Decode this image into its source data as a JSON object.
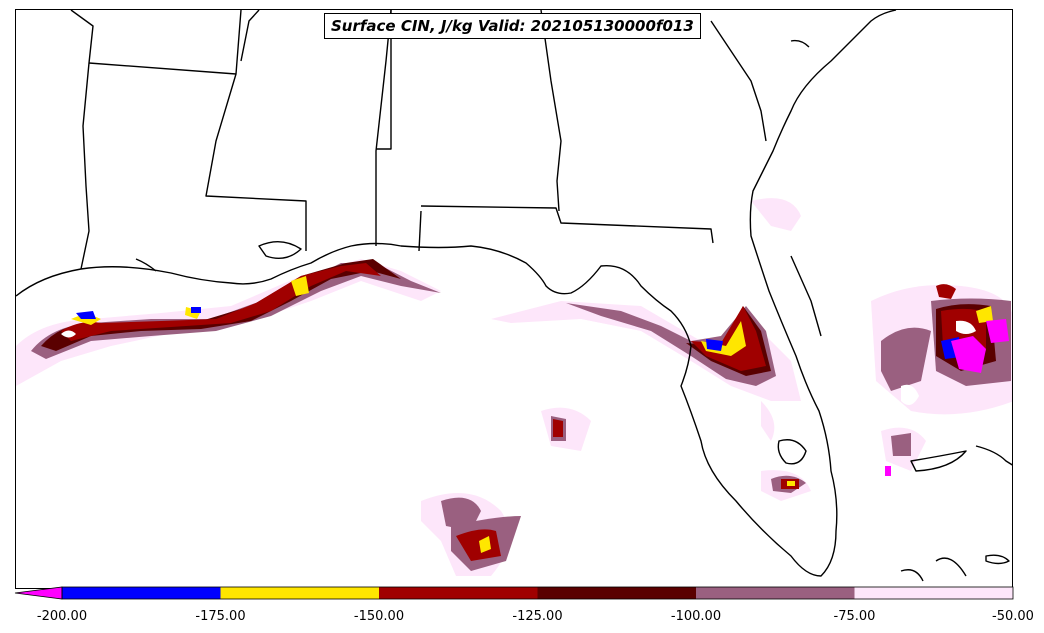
{
  "title": "Surface CIN, J/kg Valid: 202105130000f013",
  "colorbar": {
    "colors": [
      "#ff00ff",
      "#0000ff",
      "#ffe600",
      "#a00000",
      "#5a0000",
      "#9a6080",
      "#fde6fa"
    ],
    "bins": [
      {
        "from": -200,
        "to": -175,
        "color": "#0000ff"
      },
      {
        "from": -175,
        "to": -150,
        "color": "#ffe600"
      },
      {
        "from": -150,
        "to": -125,
        "color": "#a00000"
      },
      {
        "from": -125,
        "to": -100,
        "color": "#5a0000"
      },
      {
        "from": -100,
        "to": -75,
        "color": "#9a6080"
      },
      {
        "from": -75,
        "to": -50,
        "color": "#fde6fa"
      }
    ],
    "extend_min_color": "#ff00ff",
    "tick_labels": [
      "-200.00",
      "-175.00",
      "-150.00",
      "-125.00",
      "-100.00",
      "-75.00",
      "-50.00"
    ]
  }
}
